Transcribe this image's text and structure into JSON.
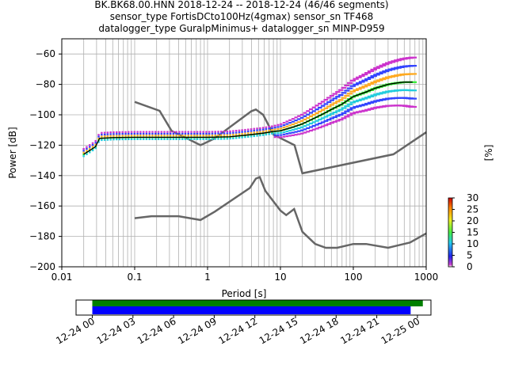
{
  "chart_data": [
    {
      "type": "heatmap",
      "title_lines": [
        "BK.BK68.00.HNN   2018-12-24 -- 2018-12-24  (46/46 segments)",
        "sensor_type FortisDCto100Hz(4gmax) sensor_sn TF468",
        "datalogger_type GuralpMinimus+ datalogger_sn MINP-D959"
      ],
      "xlabel": "Period [s]",
      "ylabel": "Power [dB]",
      "xscale": "log",
      "xlim": [
        0.01,
        1000
      ],
      "ylim": [
        -200,
        -50
      ],
      "x_ticks": [
        {
          "value": 0.01,
          "label": "0.01"
        },
        {
          "value": 0.1,
          "label": "0.1"
        },
        {
          "value": 1,
          "label": "1"
        },
        {
          "value": 10,
          "label": "10"
        },
        {
          "value": 100,
          "label": "100"
        },
        {
          "value": 1000,
          "label": "1000"
        }
      ],
      "y_ticks": [
        {
          "value": -60,
          "label": "−60"
        },
        {
          "value": -80,
          "label": "−80"
        },
        {
          "value": -100,
          "label": "−100"
        },
        {
          "value": -120,
          "label": "−120"
        },
        {
          "value": -140,
          "label": "−140"
        },
        {
          "value": -160,
          "label": "−160"
        },
        {
          "value": -180,
          "label": "−180"
        },
        {
          "value": -200,
          "label": "−200"
        }
      ],
      "grid": true,
      "colorbar": {
        "label": "[%]",
        "range": [
          0,
          30
        ],
        "ticks": [
          "0",
          "5",
          "10",
          "15",
          "20",
          "25",
          "30"
        ]
      },
      "noise_models": [
        {
          "name": "upper",
          "points": [
            [
              0.1,
              -91.5
            ],
            [
              0.22,
              -97.4
            ],
            [
              0.32,
              -110.5
            ],
            [
              0.8,
              -120
            ],
            [
              1.24,
              -115.7
            ],
            [
              4.0,
              -97.6
            ],
            [
              4.6,
              -96.5
            ],
            [
              5.8,
              -100
            ],
            [
              8.0,
              -113
            ],
            [
              15.6,
              -120
            ],
            [
              20,
              -138.5
            ],
            [
              354.8,
              -126
            ],
            [
              1000,
              -111.5
            ]
          ]
        },
        {
          "name": "lower",
          "points": [
            [
              0.1,
              -168
            ],
            [
              0.17,
              -166.7
            ],
            [
              0.4,
              -166.7
            ],
            [
              0.8,
              -169.2
            ],
            [
              1.26,
              -163.7
            ],
            [
              3.8,
              -148.2
            ],
            [
              4.6,
              -142
            ],
            [
              5.2,
              -141
            ],
            [
              6.2,
              -150
            ],
            [
              10,
              -163
            ],
            [
              12,
              -166
            ],
            [
              15.4,
              -162
            ],
            [
              20,
              -177
            ],
            [
              30,
              -185
            ],
            [
              42,
              -187.5
            ],
            [
              60,
              -187.5
            ],
            [
              100,
              -185
            ],
            [
              150,
              -185
            ],
            [
              300,
              -187.5
            ],
            [
              600,
              -184
            ],
            [
              1000,
              -178
            ]
          ]
        }
      ],
      "mode_curve": [
        [
          0.02,
          -126
        ],
        [
          0.025,
          -123
        ],
        [
          0.029,
          -121
        ],
        [
          0.033,
          -115.5
        ],
        [
          0.05,
          -115
        ],
        [
          0.1,
          -114.8
        ],
        [
          0.5,
          -114.8
        ],
        [
          1,
          -114.8
        ],
        [
          2,
          -114.5
        ],
        [
          4,
          -113
        ],
        [
          6,
          -112
        ],
        [
          8,
          -111
        ],
        [
          10,
          -110.5
        ],
        [
          15,
          -108
        ],
        [
          20,
          -106
        ],
        [
          30,
          -102
        ],
        [
          40,
          -99
        ],
        [
          50,
          -96.5
        ],
        [
          70,
          -93
        ],
        [
          100,
          -88
        ],
        [
          150,
          -85
        ],
        [
          200,
          -82.5
        ],
        [
          300,
          -80
        ],
        [
          400,
          -79
        ],
        [
          500,
          -78.5
        ],
        [
          650,
          -78.5
        ]
      ]
    },
    {
      "type": "timeline",
      "x_ticks": [
        "12-24 00",
        "12-24 03",
        "12-24 06",
        "12-24 09",
        "12-24 12",
        "12-24 15",
        "12-24 18",
        "12-24 21",
        "12-25 00"
      ],
      "window_hours": [
        -1.2,
        25
      ],
      "bars": [
        {
          "start_hour": 0,
          "end_hour": 24.4,
          "color": "#008000"
        },
        {
          "start_hour": 0,
          "end_hour": 23.5,
          "color": "#0000ff"
        }
      ]
    }
  ]
}
